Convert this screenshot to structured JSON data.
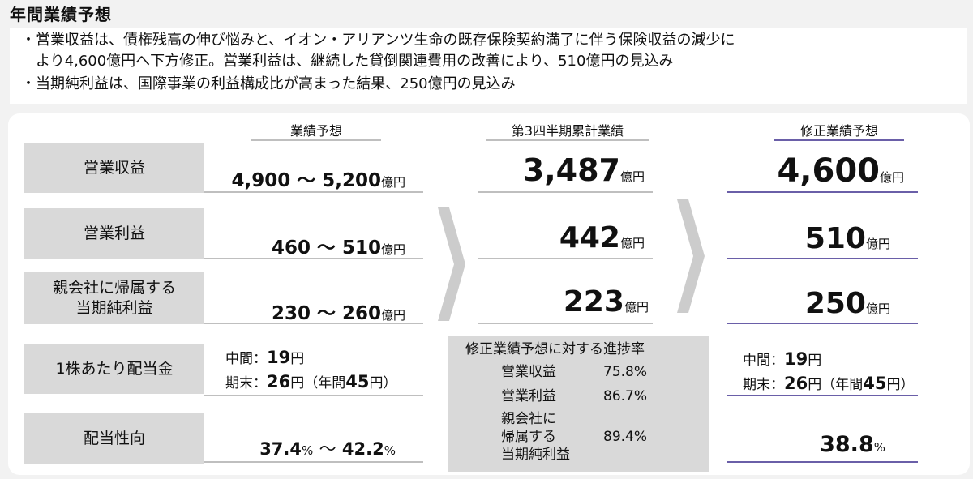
{
  "title": "年間業績予想",
  "notes": [
    "・営業収益は、債権残高の伸び悩みと、イオン・アリアンツ生命の既存保険契約満了に伴う保険収益の減少に",
    "　より4,600億円へ下方修正。営業利益は、継続した貸倒関連費用の改善により、510億円の見込み",
    "・当期純利益は、国際事業の利益構成比が高まった結果、250億円の見込み"
  ],
  "columns": {
    "forecast": "業績予想",
    "q3": "第3四半期累計業績",
    "revised": "修正業績予想"
  },
  "rows": {
    "revenue": {
      "label": "営業収益",
      "forecast_value": "4,900 ～ 5,200",
      "forecast_unit": "億円",
      "q3_value": "3,487",
      "q3_unit": "億円",
      "revised_value": "4,600",
      "revised_unit": "億円"
    },
    "op_income": {
      "label": "営業利益",
      "forecast_value": "460 ～ 510",
      "forecast_unit": "億円",
      "q3_value": "442",
      "q3_unit": "億円",
      "revised_value": "510",
      "revised_unit": "億円"
    },
    "net_income": {
      "label_line1": "親会社に帰属する",
      "label_line2": "当期純利益",
      "forecast_value": "230 ～ 260",
      "forecast_unit": "億円",
      "q3_value": "223",
      "q3_unit": "億円",
      "revised_value": "250",
      "revised_unit": "億円"
    },
    "dividend": {
      "label": "1株あたり配当金",
      "interim_label": "中間：",
      "interim_value": "19",
      "yen": "円",
      "final_label": "期末：",
      "final_value": "26",
      "annual_open": "（年間",
      "annual_value": "45",
      "annual_close": "円）"
    },
    "payout": {
      "label": "配当性向",
      "forecast_low": "37.4",
      "forecast_high": "42.2",
      "percent": "%",
      "tilde": "～",
      "revised_value": "38.8"
    }
  },
  "progress": {
    "title": "修正業績予想に対する進捗率",
    "items": [
      {
        "label": "営業収益",
        "value": "75.8%"
      },
      {
        "label": "営業利益",
        "value": "86.7%"
      }
    ],
    "net": {
      "line1": "親会社に",
      "line2": "帰属する",
      "line3": "当期純利益",
      "value": "89.4%"
    }
  },
  "colors": {
    "purple_line": "#6a5fa8",
    "gray_label": "#d9d9d9",
    "chevron": "#cccccc"
  }
}
